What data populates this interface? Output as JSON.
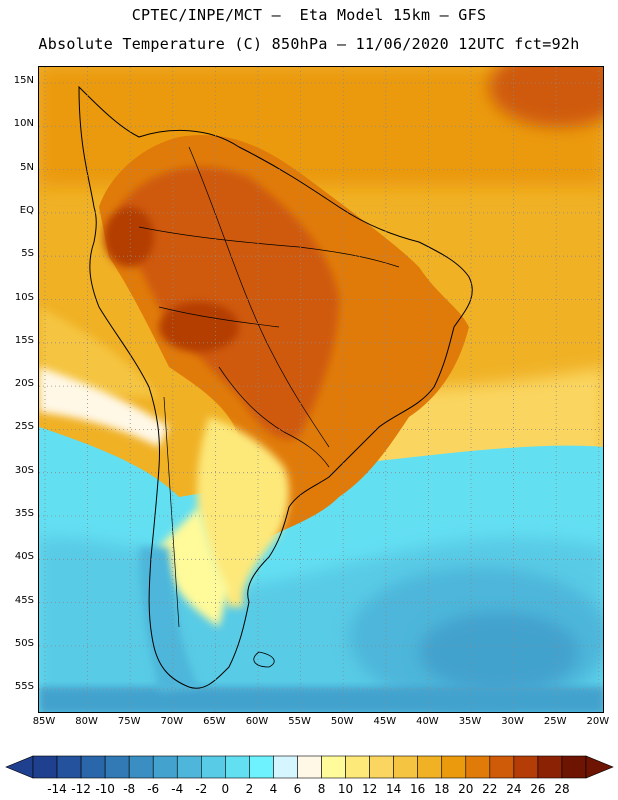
{
  "header": {
    "line1": "CPTEC/INPE/MCT –  Eta Model 15km – GFS",
    "line2": "Absolute Temperature (C) 850hPa – 11/06/2020 12UTC fct=92h"
  },
  "map": {
    "lat_labels": [
      "15N",
      "10N",
      "5N",
      "EQ",
      "5S",
      "10S",
      "15S",
      "20S",
      "25S",
      "30S",
      "35S",
      "40S",
      "45S",
      "50S",
      "55S"
    ],
    "lon_labels": [
      "85W",
      "80W",
      "75W",
      "70W",
      "65W",
      "60W",
      "55W",
      "50W",
      "45W",
      "40W",
      "35W",
      "30W",
      "25W",
      "20W"
    ]
  },
  "colorbar": {
    "labels": [
      "-14",
      "-12",
      "-10",
      "-8",
      "-6",
      "-4",
      "-2",
      "0",
      "2",
      "4",
      "6",
      "8",
      "10",
      "12",
      "14",
      "16",
      "18",
      "20",
      "22",
      "24",
      "26",
      "28"
    ],
    "colors": [
      "#1f3f8f",
      "#24529c",
      "#2a66aa",
      "#317ab6",
      "#3a8ec2",
      "#43a2ce",
      "#4db6da",
      "#58cbe6",
      "#63dff2",
      "#6ef2fd",
      "#d6f6ff",
      "#fff8e6",
      "#fffa9a",
      "#fde87a",
      "#fad660",
      "#f5c441",
      "#f0b125",
      "#eb9a0e",
      "#e07b0a",
      "#cf5a08",
      "#b43c06",
      "#8c2204",
      "#6e1402"
    ]
  }
}
